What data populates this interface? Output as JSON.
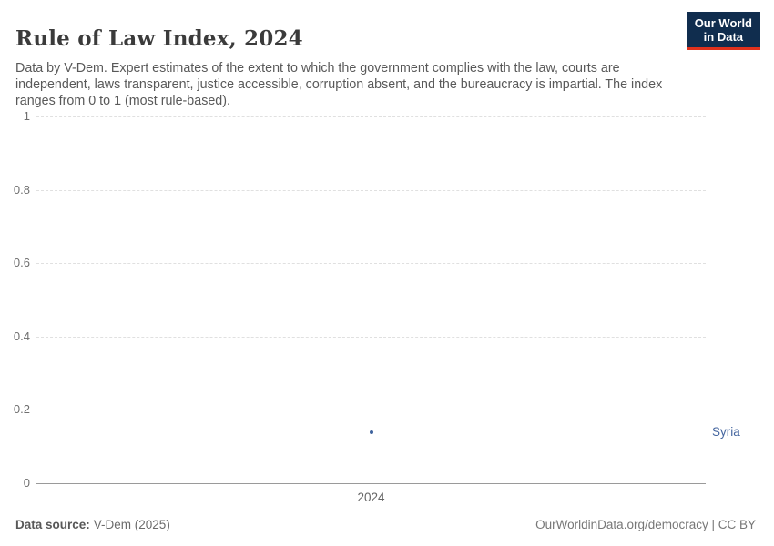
{
  "header": {
    "title": "Rule of Law Index, 2024",
    "subtitle": "Data by V-Dem. Expert estimates of the extent to which the government complies with the law, courts are independent, laws transparent, justice accessible, corruption absent, and the bureaucracy is impartial. The index ranges from 0 to 1 (most rule-based).",
    "logo": {
      "line1": "Our World",
      "line2": "in Data",
      "bg_color": "#102d4e",
      "accent_color": "#e0311c"
    }
  },
  "chart_data": {
    "type": "scatter",
    "title": "Rule of Law Index, 2024",
    "x": [
      2024
    ],
    "xtick_labels": [
      "2024"
    ],
    "series": [
      {
        "name": "Syria",
        "values": [
          0.14
        ],
        "color": "#3f639e",
        "label_color": "#44659f"
      }
    ],
    "ylim": [
      0,
      1
    ],
    "yticks": [
      0,
      0.2,
      0.4,
      0.6,
      0.8,
      1
    ],
    "ytick_labels": [
      "0",
      "0.2",
      "0.4",
      "0.6",
      "0.8",
      "1"
    ],
    "xlabel": "",
    "ylabel": "",
    "grid": "horizontal-dashed",
    "legend_position": "entity-label-right"
  },
  "footer": {
    "source_label": "Data source:",
    "source_value": "V-Dem (2025)",
    "credit": "OurWorldinData.org/democracy | CC BY"
  }
}
